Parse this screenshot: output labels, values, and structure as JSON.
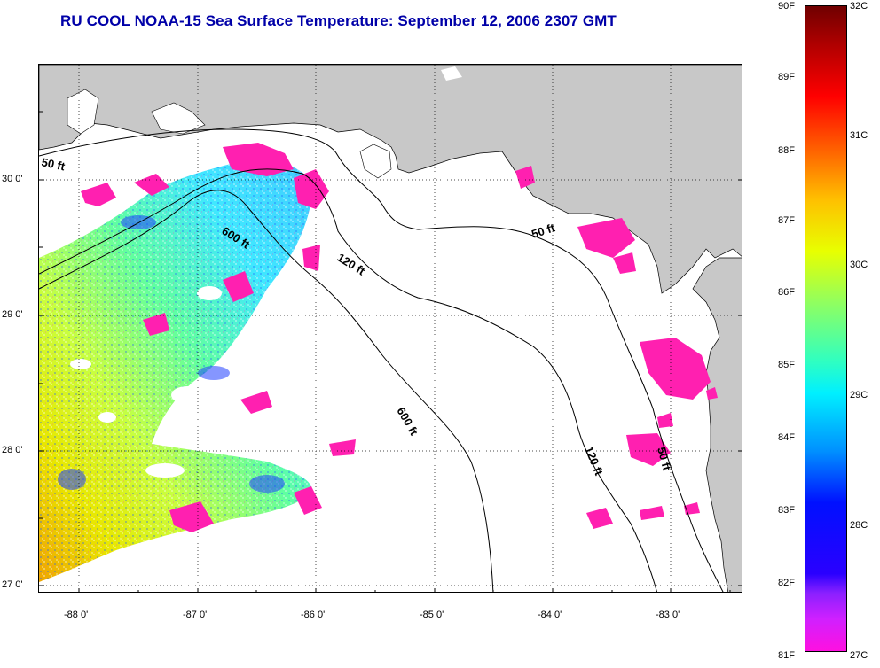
{
  "title": "RU COOL  NOAA-15  Sea Surface Temperature:  September 12, 2006 2307 GMT",
  "y_axis_labels": [
    "30 0'",
    "29 0'",
    "28 0'",
    "27 0'"
  ],
  "x_axis_labels": [
    "-88 0'",
    "-87 0'",
    "-86 0'",
    "-85 0'",
    "-84 0'",
    "-83 0'"
  ],
  "contours": {
    "ft50_west": "50 ft",
    "ft600_a": "600 ft",
    "ft120_a": "120 ft",
    "ft50_east": "50 ft",
    "ft600_b": "600 ft",
    "ft120_b": "120 ft",
    "ft50_c": "50 ft"
  },
  "colorbar": {
    "fahrenheit": [
      "90F",
      "89F",
      "88F",
      "87F",
      "86F",
      "85F",
      "84F",
      "83F",
      "82F",
      "81F"
    ],
    "celsius": [
      "32C",
      "31C",
      "30C",
      "29C",
      "28C",
      "27C"
    ]
  },
  "colors": {
    "title": "#0000a8",
    "land": "#c8c8c8",
    "cold": "#ff20b0"
  }
}
